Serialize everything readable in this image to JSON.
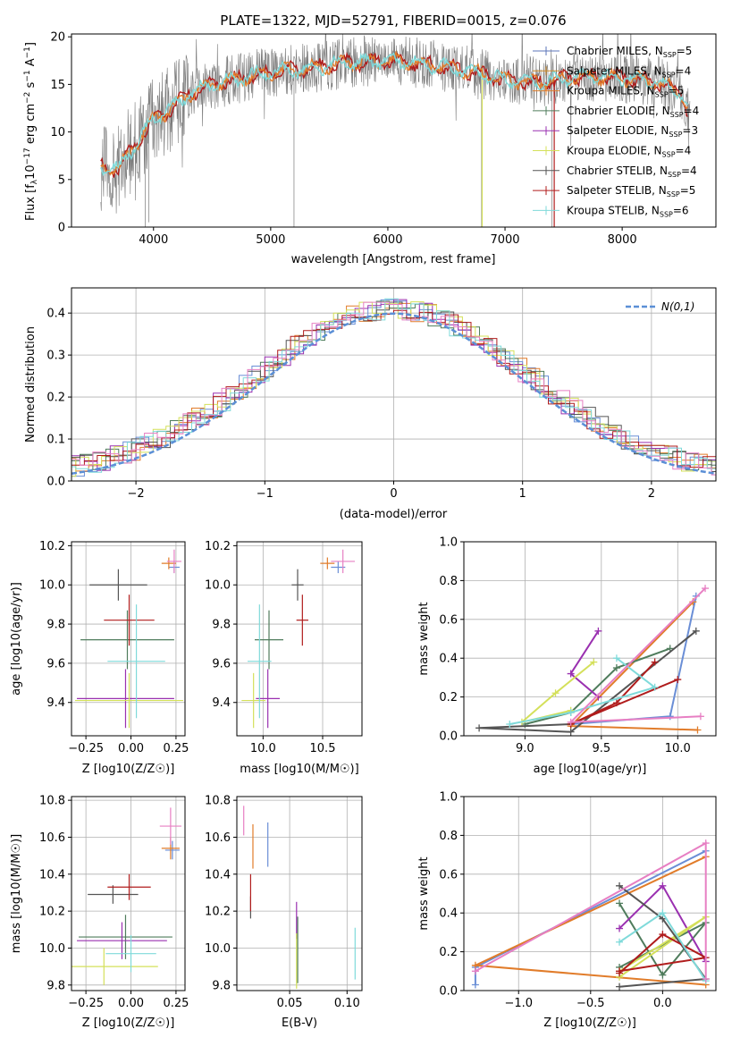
{
  "palette": [
    "#6a8ed6",
    "#e17c2a",
    "#4f7c5c",
    "#9a30b0",
    "#d4e05a",
    "#555555",
    "#b01c1c",
    "#7fdada",
    "#e77fc3",
    "#cd8a2a",
    "#5b74b8"
  ],
  "chart_data": [
    {
      "id": "spectrum",
      "type": "line",
      "title": "PLATE=1322, MJD=52791, FIBERID=0015, z=0.076",
      "xlabel": "wavelength [Angstrom, rest frame]",
      "ylabel": "Flux [f_λ 10^−17 erg cm^−2 s^−1 A^−1]",
      "xlim": [
        3300,
        8800
      ],
      "ylim": [
        0,
        20.3
      ],
      "xticks": [
        4000,
        5000,
        6000,
        7000,
        8000
      ],
      "yticks": [
        0,
        5,
        10,
        15,
        20
      ],
      "legend_position": "right",
      "continuum": [
        [
          3550,
          6.5
        ],
        [
          3700,
          6.0
        ],
        [
          3800,
          8.0
        ],
        [
          3900,
          9.5
        ],
        [
          4000,
          11.5
        ],
        [
          4100,
          12.0
        ],
        [
          4300,
          14.0
        ],
        [
          4500,
          15.0
        ],
        [
          4800,
          15.8
        ],
        [
          5000,
          16.3
        ],
        [
          5300,
          16.6
        ],
        [
          5600,
          17.2
        ],
        [
          6000,
          17.5
        ],
        [
          6300,
          17.2
        ],
        [
          6600,
          16.6
        ],
        [
          7000,
          15.5
        ],
        [
          7300,
          15.2
        ],
        [
          7600,
          15.8
        ],
        [
          8000,
          15.7
        ],
        [
          8300,
          15.3
        ],
        [
          8500,
          14.0
        ],
        [
          8550,
          12.5
        ]
      ],
      "series": [
        {
          "name": "Chabrier MILES, N_SSP=5"
        },
        {
          "name": "Salpeter MILES, N_SSP=4"
        },
        {
          "name": "Kroupa MILES, N_SSP=5"
        },
        {
          "name": "Chabrier ELODIE, N_SSP=4"
        },
        {
          "name": "Salpeter ELODIE, N_SSP=3"
        },
        {
          "name": "Kroupa ELODIE, N_SSP=4"
        },
        {
          "name": "Chabrier STELIB, N_SSP=4"
        },
        {
          "name": "Salpeter STELIB, N_SSP=5"
        },
        {
          "name": "Kroupa STELIB, N_SSP=6"
        }
      ]
    },
    {
      "id": "residuals",
      "type": "line",
      "xlabel": "(data-model)/error",
      "ylabel": "Normed distribution",
      "xlim": [
        -2.5,
        2.5
      ],
      "ylim": [
        0,
        0.46
      ],
      "xticks": [
        -2,
        -1,
        0,
        1,
        2
      ],
      "yticks": [
        0.0,
        0.1,
        0.2,
        0.3,
        0.4
      ],
      "grid": true,
      "legend": "N(0,1)",
      "legend_position": "top-right",
      "series_count": 9
    },
    {
      "id": "age_vs_Z",
      "type": "scatter",
      "xlabel": "Z [log10(Z/Z☉)]",
      "ylabel": "age [log10(age/yr)]",
      "xlim": [
        -0.33,
        0.3
      ],
      "ylim": [
        9.23,
        10.22
      ],
      "xticks": [
        -0.25,
        0.0,
        0.25
      ],
      "yticks": [
        9.4,
        9.6,
        9.8,
        10.0,
        10.2
      ],
      "grid": true,
      "points": [
        {
          "x": 0.24,
          "y": 10.09,
          "xerr": 0.03,
          "yerr": 0.03,
          "c": 0
        },
        {
          "x": 0.21,
          "y": 10.11,
          "xerr": 0.04,
          "yerr": 0.03,
          "c": 1
        },
        {
          "x": -0.02,
          "y": 9.72,
          "xerr": 0.26,
          "yerr": 0.15,
          "c": 2
        },
        {
          "x": -0.03,
          "y": 9.42,
          "xerr": 0.27,
          "yerr": 0.15,
          "c": 3
        },
        {
          "x": -0.01,
          "y": 9.41,
          "xerr": 0.3,
          "yerr": 0.14,
          "c": 4
        },
        {
          "x": -0.07,
          "y": 10.0,
          "xerr": 0.16,
          "yerr": 0.08,
          "c": 5
        },
        {
          "x": -0.01,
          "y": 9.82,
          "xerr": 0.14,
          "yerr": 0.13,
          "c": 6
        },
        {
          "x": 0.03,
          "y": 9.61,
          "xerr": 0.16,
          "yerr": 0.29,
          "c": 7
        },
        {
          "x": 0.24,
          "y": 10.12,
          "xerr": 0.04,
          "yerr": 0.06,
          "c": 8
        }
      ]
    },
    {
      "id": "age_vs_mass",
      "type": "scatter",
      "xlabel": "mass [log10(M/M☉)]",
      "ylabel": "",
      "xlim": [
        9.78,
        10.83
      ],
      "ylim": [
        9.23,
        10.22
      ],
      "xticks": [
        10.0,
        10.5
      ],
      "yticks": [
        9.4,
        9.6,
        9.8,
        10.0,
        10.2
      ],
      "grid": true,
      "points": [
        {
          "x": 10.63,
          "y": 10.09,
          "xerr": 0.06,
          "yerr": 0.03,
          "c": 0
        },
        {
          "x": 10.54,
          "y": 10.11,
          "xerr": 0.06,
          "yerr": 0.03,
          "c": 1
        },
        {
          "x": 10.05,
          "y": 9.72,
          "xerr": 0.12,
          "yerr": 0.15,
          "c": 2
        },
        {
          "x": 10.04,
          "y": 9.42,
          "xerr": 0.1,
          "yerr": 0.15,
          "c": 3
        },
        {
          "x": 9.92,
          "y": 9.41,
          "xerr": 0.1,
          "yerr": 0.14,
          "c": 4
        },
        {
          "x": 10.29,
          "y": 10.0,
          "xerr": 0.05,
          "yerr": 0.08,
          "c": 5
        },
        {
          "x": 10.33,
          "y": 9.82,
          "xerr": 0.05,
          "yerr": 0.13,
          "c": 6
        },
        {
          "x": 9.97,
          "y": 9.61,
          "xerr": 0.1,
          "yerr": 0.29,
          "c": 7
        },
        {
          "x": 10.67,
          "y": 10.12,
          "xerr": 0.1,
          "yerr": 0.06,
          "c": 8
        }
      ]
    },
    {
      "id": "mass_weight_vs_age",
      "type": "line",
      "xlabel": "age [log10(age/yr)]",
      "ylabel": "mass weight",
      "xlim": [
        8.6,
        10.25
      ],
      "ylim": [
        0.0,
        1.0
      ],
      "xticks": [
        9.0,
        9.5,
        10.0
      ],
      "yticks": [
        0.0,
        0.2,
        0.4,
        0.6,
        0.8,
        1.0
      ],
      "grid": true,
      "series": [
        {
          "c": 0,
          "x": [
            10.12,
            9.95,
            9.3
          ],
          "y": [
            0.72,
            0.1,
            0.06
          ]
        },
        {
          "c": 1,
          "x": [
            10.1,
            9.3,
            10.13
          ],
          "y": [
            0.69,
            0.05,
            0.03
          ]
        },
        {
          "c": 2,
          "x": [
            9.95,
            9.6,
            9.3,
            9.0
          ],
          "y": [
            0.45,
            0.35,
            0.12,
            0.06
          ]
        },
        {
          "c": 3,
          "x": [
            9.48,
            9.3,
            9.48
          ],
          "y": [
            0.54,
            0.32,
            0.2
          ]
        },
        {
          "c": 4,
          "x": [
            9.45,
            9.2,
            8.98,
            9.3
          ],
          "y": [
            0.38,
            0.22,
            0.07,
            0.13
          ]
        },
        {
          "c": 5,
          "x": [
            10.12,
            9.3,
            8.7,
            9.3
          ],
          "y": [
            0.54,
            0.02,
            0.04,
            0.06
          ]
        },
        {
          "c": 6,
          "x": [
            9.85,
            9.6,
            9.3,
            10.0
          ],
          "y": [
            0.38,
            0.17,
            0.06,
            0.29
          ]
        },
        {
          "c": 7,
          "x": [
            9.6,
            9.85,
            9.3,
            8.9
          ],
          "y": [
            0.4,
            0.25,
            0.12,
            0.06
          ]
        },
        {
          "c": 8,
          "x": [
            10.18,
            9.3,
            10.15
          ],
          "y": [
            0.76,
            0.07,
            0.1
          ]
        }
      ]
    },
    {
      "id": "mass_vs_Z",
      "type": "scatter",
      "xlabel": "Z [log10(Z/Z☉)]",
      "ylabel": "mass [log10(M/M☉)]",
      "xlim": [
        -0.33,
        0.3
      ],
      "ylim": [
        9.77,
        10.82
      ],
      "xticks": [
        -0.25,
        0.0,
        0.25
      ],
      "yticks": [
        9.8,
        10.0,
        10.2,
        10.4,
        10.6,
        10.8
      ],
      "grid": true,
      "points": [
        {
          "x": 0.23,
          "y": 10.53,
          "xerr": 0.04,
          "yerr": 0.05,
          "c": 0
        },
        {
          "x": 0.22,
          "y": 10.54,
          "xerr": 0.05,
          "yerr": 0.06,
          "c": 1
        },
        {
          "x": -0.03,
          "y": 10.06,
          "xerr": 0.26,
          "yerr": 0.12,
          "c": 2
        },
        {
          "x": -0.05,
          "y": 10.04,
          "xerr": 0.25,
          "yerr": 0.1,
          "c": 3
        },
        {
          "x": -0.15,
          "y": 9.9,
          "xerr": 0.3,
          "yerr": 0.1,
          "c": 4
        },
        {
          "x": -0.1,
          "y": 10.29,
          "xerr": 0.14,
          "yerr": 0.05,
          "c": 5
        },
        {
          "x": -0.01,
          "y": 10.33,
          "xerr": 0.12,
          "yerr": 0.07,
          "c": 6
        },
        {
          "x": 0.0,
          "y": 9.97,
          "xerr": 0.14,
          "yerr": 0.1,
          "c": 7
        },
        {
          "x": 0.22,
          "y": 10.66,
          "xerr": 0.06,
          "yerr": 0.1,
          "c": 8
        }
      ]
    },
    {
      "id": "mass_vs_ebv",
      "type": "scatter",
      "xlabel": "E(B-V)",
      "ylabel": "",
      "xlim": [
        0.004,
        0.113
      ],
      "ylim": [
        9.77,
        10.82
      ],
      "xticks": [
        0.05,
        0.1
      ],
      "yticks": [
        9.8,
        10.0,
        10.2,
        10.4,
        10.6,
        10.8
      ],
      "grid": true,
      "points": [
        {
          "x": 0.031,
          "y": 10.56,
          "xerr": 0,
          "yerr": 0.12,
          "c": 0
        },
        {
          "x": 0.018,
          "y": 10.55,
          "xerr": 0,
          "yerr": 0.12,
          "c": 1
        },
        {
          "x": 0.057,
          "y": 9.99,
          "xerr": 0,
          "yerr": 0.18,
          "c": 2
        },
        {
          "x": 0.056,
          "y": 10.15,
          "xerr": 0,
          "yerr": 0.1,
          "c": 3
        },
        {
          "x": 0.056,
          "y": 9.93,
          "xerr": 0,
          "yerr": 0.15,
          "c": 4
        },
        {
          "x": 0.016,
          "y": 10.22,
          "xerr": 0,
          "yerr": 0.06,
          "c": 5
        },
        {
          "x": 0.016,
          "y": 10.3,
          "xerr": 0,
          "yerr": 0.1,
          "c": 6
        },
        {
          "x": 0.107,
          "y": 9.97,
          "xerr": 0,
          "yerr": 0.14,
          "c": 7
        },
        {
          "x": 0.01,
          "y": 10.69,
          "xerr": 0,
          "yerr": 0.08,
          "c": 8
        }
      ]
    },
    {
      "id": "mass_weight_vs_Z",
      "type": "line",
      "xlabel": "Z [log10(Z/Z☉)]",
      "ylabel": "mass weight",
      "xlim": [
        -1.38,
        0.37
      ],
      "ylim": [
        0.0,
        1.0
      ],
      "xticks": [
        -1.0,
        -0.5,
        0.0
      ],
      "yticks": [
        0.0,
        0.2,
        0.4,
        0.6,
        0.8,
        1.0
      ],
      "grid": true,
      "series": [
        {
          "c": 0,
          "x": [
            0.3,
            -1.3,
            -1.3
          ],
          "y": [
            0.72,
            0.12,
            0.03
          ]
        },
        {
          "c": 1,
          "x": [
            0.3,
            -1.3,
            0.3
          ],
          "y": [
            0.69,
            0.13,
            0.03
          ]
        },
        {
          "c": 2,
          "x": [
            -0.3,
            0.0,
            0.3,
            -0.3
          ],
          "y": [
            0.45,
            0.08,
            0.35,
            0.12
          ]
        },
        {
          "c": 3,
          "x": [
            -0.3,
            0.0,
            0.3
          ],
          "y": [
            0.32,
            0.54,
            0.15
          ]
        },
        {
          "c": 4,
          "x": [
            -0.3,
            0.3,
            -0.3
          ],
          "y": [
            0.07,
            0.38,
            0.1
          ]
        },
        {
          "c": 5,
          "x": [
            -0.3,
            0.0,
            0.3,
            -0.3
          ],
          "y": [
            0.54,
            0.37,
            0.06,
            0.02
          ]
        },
        {
          "c": 6,
          "x": [
            -0.3,
            0.0,
            0.3,
            -0.3
          ],
          "y": [
            0.09,
            0.29,
            0.17,
            0.1
          ]
        },
        {
          "c": 7,
          "x": [
            -0.3,
            0.0,
            0.3
          ],
          "y": [
            0.25,
            0.4,
            0.05
          ]
        },
        {
          "c": 8,
          "x": [
            -1.3,
            0.3,
            0.3
          ],
          "y": [
            0.1,
            0.76,
            0.06
          ]
        }
      ]
    }
  ]
}
